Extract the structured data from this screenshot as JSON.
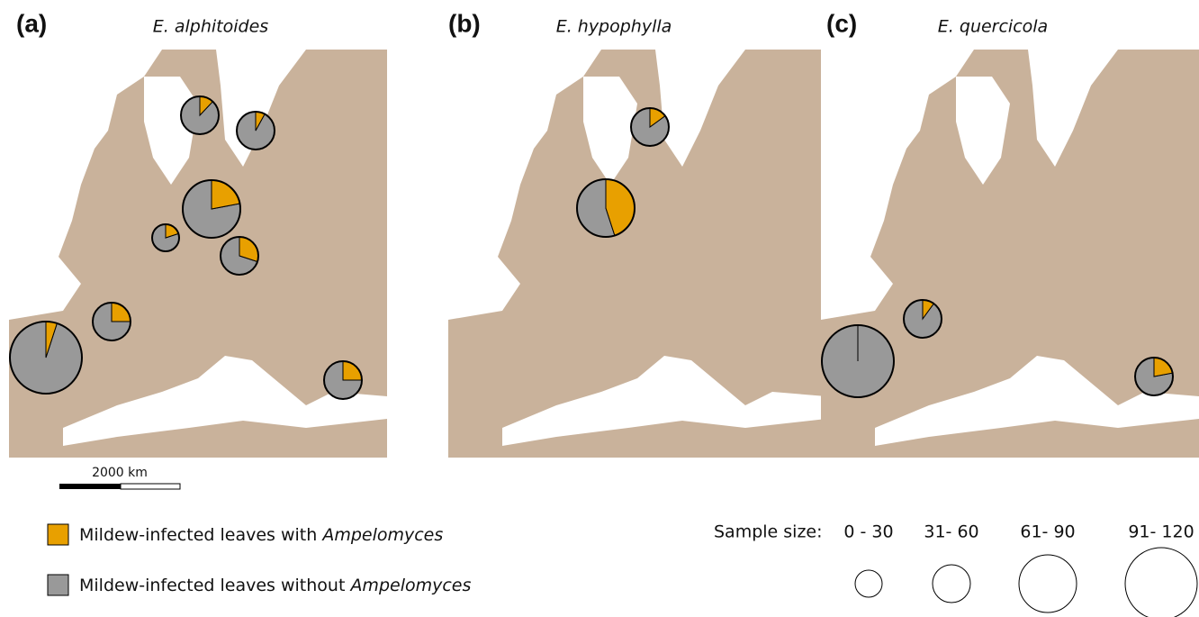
{
  "panels": [
    {
      "label": "(a)",
      "title": "E. alphitoides",
      "pies": [
        {
          "with": 12,
          "without": 88,
          "sample_size": "31- 60"
        },
        {
          "with": 8,
          "without": 92,
          "sample_size": "31- 60"
        },
        {
          "with": 22,
          "without": 78,
          "sample_size": "61- 90"
        },
        {
          "with": 20,
          "without": 80,
          "sample_size": "0 - 30"
        },
        {
          "with": 30,
          "without": 70,
          "sample_size": "31- 60"
        },
        {
          "with": 25,
          "without": 75,
          "sample_size": "31- 60"
        },
        {
          "with": 5,
          "without": 95,
          "sample_size": "91- 120"
        },
        {
          "with": 25,
          "without": 75,
          "sample_size": "31- 60"
        }
      ]
    },
    {
      "label": "(b)",
      "title": "E. hypophylla",
      "pies": [
        {
          "with": 15,
          "without": 85,
          "sample_size": "31- 60"
        },
        {
          "with": 45,
          "without": 55,
          "sample_size": "61- 90"
        }
      ]
    },
    {
      "label": "(c)",
      "title": "E. quercicola",
      "pies": [
        {
          "with": 10,
          "without": 90,
          "sample_size": "31- 60"
        },
        {
          "with": 0,
          "without": 100,
          "sample_size": "91- 120"
        },
        {
          "with": 22,
          "without": 78,
          "sample_size": "31- 60"
        }
      ]
    }
  ],
  "scale_bar": "2000 km",
  "legend": {
    "with": {
      "text": "Mildew-infected leaves with ",
      "italic": "Ampelomyces",
      "color": "#e8a000"
    },
    "without": {
      "text": "Mildew-infected leaves without ",
      "italic": "Ampelomyces",
      "color": "#999999"
    }
  },
  "sample_size": {
    "title": "Sample size:",
    "bins": [
      "0 - 30",
      "31- 60",
      "61- 90",
      "91- 120"
    ]
  }
}
